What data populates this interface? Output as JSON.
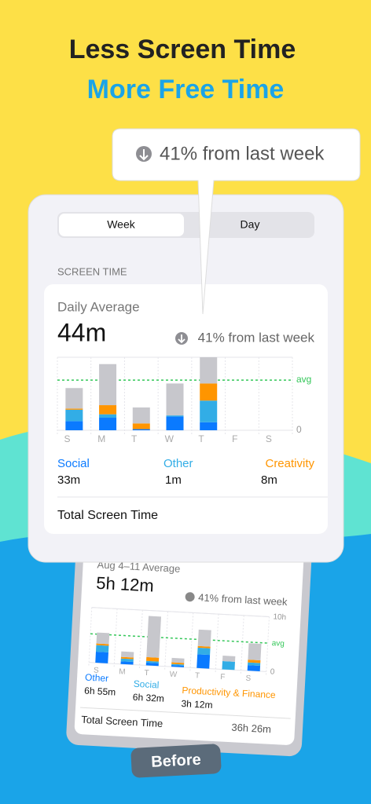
{
  "headline": {
    "line1": "Less Screen Time",
    "line2": "More Free Time"
  },
  "callout": {
    "text": "41% from last week"
  },
  "card": {
    "tabs": [
      "Week",
      "Day"
    ],
    "section": "SCREEN TIME",
    "label": "Daily Average",
    "value": "44m",
    "change": "41% from last week",
    "chart": {
      "type": "bar",
      "stacked": true,
      "categories": [
        "S",
        "M",
        "T",
        "W",
        "T",
        "F",
        "S"
      ],
      "series": [
        {
          "name": "Social",
          "color": "#0a7aff",
          "total": "33m",
          "values": [
            8,
            11,
            1,
            12,
            7,
            0,
            0
          ]
        },
        {
          "name": "Other",
          "color": "#32ade6",
          "total": "1m",
          "values": [
            10,
            3,
            0,
            1,
            19,
            0,
            0
          ]
        },
        {
          "name": "Creativity",
          "color": "#ff9500",
          "total": "8m",
          "values": [
            1,
            8,
            5,
            0,
            15,
            0,
            0
          ]
        },
        {
          "color": "#c7c7cc",
          "values": [
            18,
            36,
            14,
            28,
            23,
            0,
            0
          ]
        }
      ],
      "ylim": [
        0,
        64
      ],
      "yticks": [
        0
      ],
      "avg": 44,
      "avg_label": "avg"
    },
    "total_label": "Total Screen Time"
  },
  "before_card": {
    "label": "Aug 4–11 Average",
    "value": "5h 12m",
    "change": "41% from last week",
    "chart": {
      "type": "bar",
      "stacked": true,
      "categories": [
        "S",
        "M",
        "T",
        "W",
        "T",
        "F",
        "S"
      ],
      "series": [
        {
          "name": "Other",
          "color": "#0a7aff",
          "total": "6h 55m",
          "values": [
            2.0,
            0.5,
            0.5,
            0.3,
            2.5,
            0,
            1.0
          ]
        },
        {
          "name": "Social",
          "color": "#32ade6",
          "total": "6h 32m",
          "values": [
            1.2,
            0.5,
            0.3,
            0.2,
            1.2,
            1.5,
            0.5
          ]
        },
        {
          "name": "Productivity & Finance",
          "color": "#ff9500",
          "total": "3h 12m",
          "values": [
            0.3,
            0.3,
            0.7,
            0.3,
            0.3,
            0,
            0.5
          ]
        },
        {
          "color": "#c7c7cc",
          "values": [
            2.0,
            1.0,
            7.5,
            0.8,
            3.0,
            1.0,
            3.0
          ]
        }
      ],
      "ylim": [
        0,
        10
      ],
      "yticks": [
        {
          "value": 10,
          "label": "10h"
        },
        0
      ],
      "avg": 5.2,
      "avg_label": "avg"
    },
    "total_label": "Total Screen Time",
    "total_value": "36h 26m"
  },
  "badge": "Before"
}
